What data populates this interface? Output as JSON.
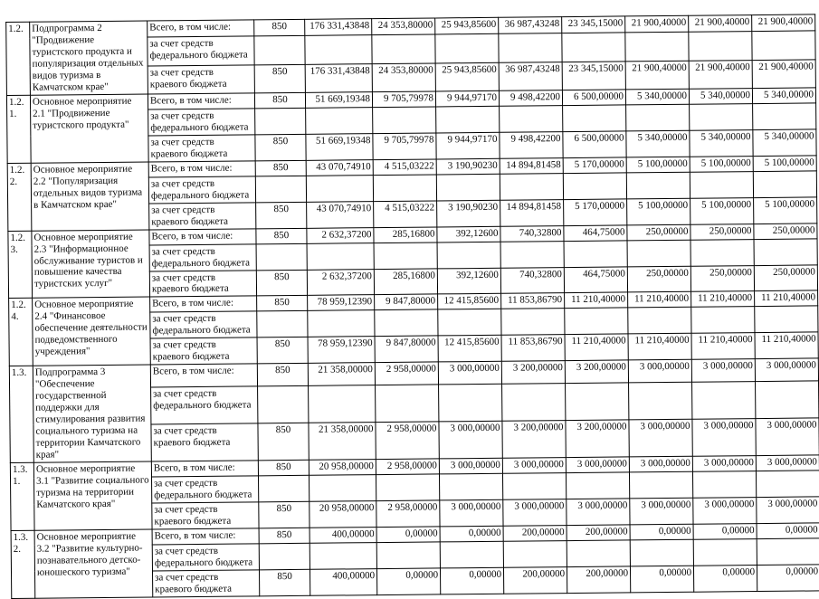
{
  "table": {
    "code_value": "850",
    "sources": [
      "Всего, в том числе:",
      "за счет средств федерального бюджета",
      "за счет средств краевого бюджета"
    ],
    "rows": [
      {
        "index": "1.2.",
        "name": "Подпрограмма 2 \"Продвижение туристского продукта и популяризация отдельных видов туризма в Камчатском крае\"",
        "code": "850",
        "total_values": [
          "176 331,43848",
          "24 353,80000",
          "25 943,85600",
          "36 987,43248",
          "23 345,15000",
          "21 900,40000",
          "21 900,40000",
          "21 900,40000"
        ],
        "federal_values": [],
        "regional_values": [
          "176 331,43848",
          "24 353,80000",
          "25 943,85600",
          "36 987,43248",
          "23 345,15000",
          "21 900,40000",
          "21 900,40000",
          "21 900,40000"
        ]
      },
      {
        "index": "1.2.1.",
        "name": "Основное мероприятие 2.1 \"Продвижение туристского продукта\"",
        "code": "850",
        "total_values": [
          "51 669,19348",
          "9 705,79978",
          "9 944,97170",
          "9 498,42200",
          "6 500,00000",
          "5 340,00000",
          "5 340,00000",
          "5 340,00000"
        ],
        "federal_values": [],
        "regional_values": [
          "51 669,19348",
          "9 705,79978",
          "9 944,97170",
          "9 498,42200",
          "6 500,00000",
          "5 340,00000",
          "5 340,00000",
          "5 340,00000"
        ]
      },
      {
        "index": "1.2.2.",
        "name": "Основное мероприятие 2.2 \"Популяризация отдельных видов туризма в Камчатском крае\"",
        "code": "850",
        "total_values": [
          "43 070,74910",
          "4 515,03222",
          "3 190,90230",
          "14 894,81458",
          "5 170,00000",
          "5 100,00000",
          "5 100,00000",
          "5 100,00000"
        ],
        "federal_values": [],
        "regional_values": [
          "43 070,74910",
          "4 515,03222",
          "3 190,90230",
          "14 894,81458",
          "5 170,00000",
          "5 100,00000",
          "5 100,00000",
          "5 100,00000"
        ]
      },
      {
        "index": "1.2.3.",
        "name": "Основное мероприятие 2.3 \"Информационное обслуживание туристов и повышение качества туристских услуг\"",
        "code": "850",
        "total_values": [
          "2 632,37200",
          "285,16800",
          "392,12600",
          "740,32800",
          "464,75000",
          "250,00000",
          "250,00000",
          "250,00000"
        ],
        "federal_values": [],
        "regional_values": [
          "2 632,37200",
          "285,16800",
          "392,12600",
          "740,32800",
          "464,75000",
          "250,00000",
          "250,00000",
          "250,00000"
        ]
      },
      {
        "index": "1.2.4.",
        "name": "Основное мероприятие 2.4 \"Финансовое обеспечение деятельности подведомственного учреждения\"",
        "code": "850",
        "total_values": [
          "78 959,12390",
          "9 847,80000",
          "12 415,85600",
          "11 853,86790",
          "11 210,40000",
          "11 210,40000",
          "11 210,40000",
          "11 210,40000"
        ],
        "federal_values": [],
        "regional_values": [
          "78 959,12390",
          "9 847,80000",
          "12 415,85600",
          "11 853,86790",
          "11 210,40000",
          "11 210,40000",
          "11 210,40000",
          "11 210,40000"
        ]
      },
      {
        "index": "1.3.",
        "name": "Подпрограмма 3 \"Обеспечение государственной поддержки для стимулирования развития социального туризма на территории Камчатского края\"",
        "code": "850",
        "total_values": [
          "21 358,00000",
          "2 958,00000",
          "3 000,00000",
          "3 200,00000",
          "3 200,00000",
          "3 000,00000",
          "3 000,00000",
          "3 000,00000"
        ],
        "federal_values": [],
        "regional_values": [
          "21 358,00000",
          "2 958,00000",
          "3 000,00000",
          "3 200,00000",
          "3 200,00000",
          "3 000,00000",
          "3 000,00000",
          "3 000,00000"
        ]
      },
      {
        "index": "1.3.1.",
        "name": "Основное мероприятие 3.1 \"Развитие социального туризма на территории Камчатского края\"",
        "code": "850",
        "total_values": [
          "20 958,00000",
          "2 958,00000",
          "3 000,00000",
          "3 000,00000",
          "3 000,00000",
          "3 000,00000",
          "3 000,00000",
          "3 000,00000"
        ],
        "federal_values": [],
        "regional_values": [
          "20 958,00000",
          "2 958,00000",
          "3 000,00000",
          "3 000,00000",
          "3 000,00000",
          "3 000,00000",
          "3 000,00000",
          "3 000,00000"
        ]
      },
      {
        "index": "1.3.2.",
        "name": "Основное мероприятие 3.2 \"Развитие культурно-познавательного детско-юношеского туризма\"",
        "code": "850",
        "total_values": [
          "400,00000",
          "0,00000",
          "0,00000",
          "200,00000",
          "200,00000",
          "0,00000",
          "0,00000",
          "0,00000"
        ],
        "federal_values": [],
        "regional_values": [
          "400,00000",
          "0,00000",
          "0,00000",
          "200,00000",
          "200,00000",
          "0,00000",
          "0,00000",
          "0,00000"
        ]
      }
    ]
  }
}
